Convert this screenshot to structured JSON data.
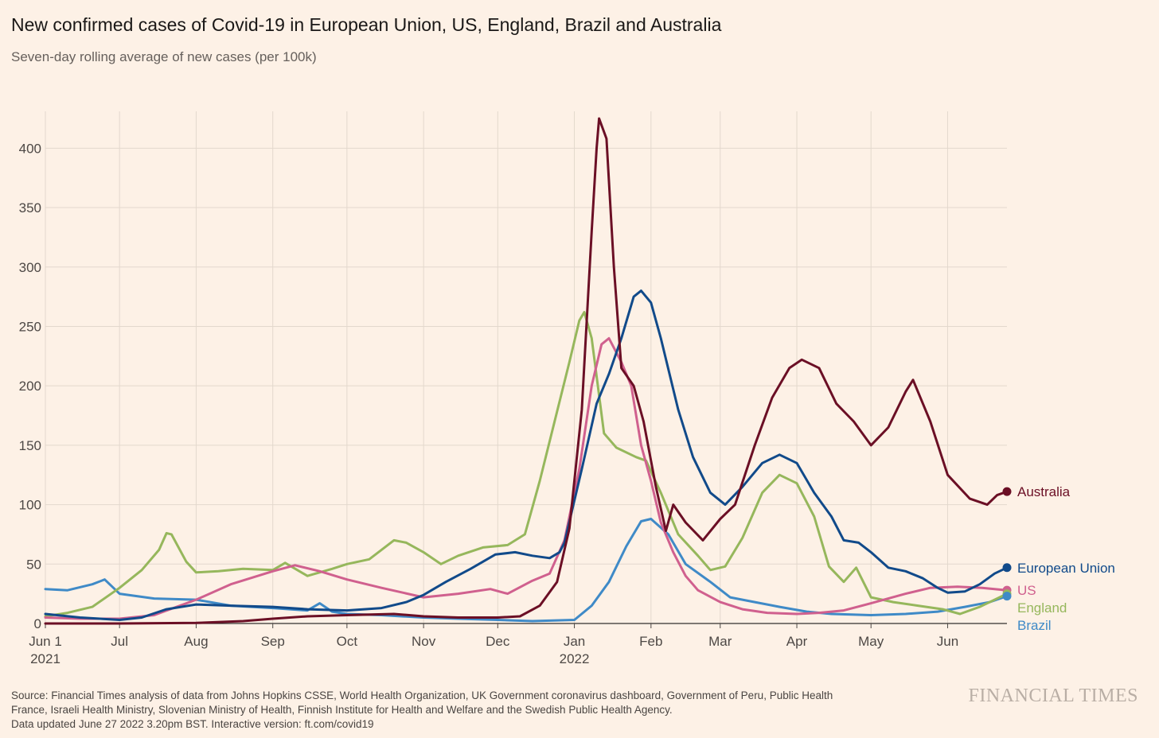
{
  "title": "New confirmed cases of Covid-19 in European Union, US, England, Brazil and Australia",
  "subtitle": "Seven-day rolling average of new cases (per 100k)",
  "footer": {
    "source_line1": "Source: Financial Times analysis of data from Johns Hopkins CSSE, World Health Organization, UK Government coronavirus dashboard, Government of Peru, Public Health",
    "source_line2": "France, Israeli Health Ministry, Slovenian Ministry of Health, Finnish Institute for Health and Welfare and the Swedish Public Health Agency.",
    "updated": "Data updated June 27 2022 3.20pm BST. Interactive version: ft.com/covid19"
  },
  "brand": "FINANCIAL TIMES",
  "chart_data": {
    "type": "line",
    "xlabel": "",
    "ylabel": "",
    "ylim": [
      0,
      425
    ],
    "yticks": [
      0,
      50,
      100,
      150,
      200,
      250,
      300,
      350,
      400
    ],
    "xlim": [
      "2021-06-01",
      "2022-06-25"
    ],
    "xticks": [
      {
        "date": "2021-06-01",
        "label": "Jun 1",
        "sublabel": "2021"
      },
      {
        "date": "2021-07-01",
        "label": "Jul",
        "sublabel": ""
      },
      {
        "date": "2021-08-01",
        "label": "Aug",
        "sublabel": ""
      },
      {
        "date": "2021-09-01",
        "label": "Sep",
        "sublabel": ""
      },
      {
        "date": "2021-10-01",
        "label": "Oct",
        "sublabel": ""
      },
      {
        "date": "2021-11-01",
        "label": "Nov",
        "sublabel": ""
      },
      {
        "date": "2021-12-01",
        "label": "Dec",
        "sublabel": ""
      },
      {
        "date": "2022-01-01",
        "label": "Jan",
        "sublabel": "2022"
      },
      {
        "date": "2022-02-01",
        "label": "Feb",
        "sublabel": ""
      },
      {
        "date": "2022-03-01",
        "label": "Mar",
        "sublabel": ""
      },
      {
        "date": "2022-04-01",
        "label": "Apr",
        "sublabel": ""
      },
      {
        "date": "2022-05-01",
        "label": "May",
        "sublabel": ""
      },
      {
        "date": "2022-06-01",
        "label": "Jun",
        "sublabel": ""
      }
    ],
    "grid": true,
    "legend": "end-of-line labels",
    "series": [
      {
        "name": "European Union",
        "color": "#114a8a",
        "points": [
          [
            "2021-06-01",
            8
          ],
          [
            "2021-06-15",
            5
          ],
          [
            "2021-07-01",
            3
          ],
          [
            "2021-07-10",
            5
          ],
          [
            "2021-07-20",
            12
          ],
          [
            "2021-08-01",
            16
          ],
          [
            "2021-08-15",
            15
          ],
          [
            "2021-09-01",
            14
          ],
          [
            "2021-09-15",
            12
          ],
          [
            "2021-10-01",
            11
          ],
          [
            "2021-10-15",
            13
          ],
          [
            "2021-10-25",
            18
          ],
          [
            "2021-11-01",
            24
          ],
          [
            "2021-11-10",
            35
          ],
          [
            "2021-11-20",
            46
          ],
          [
            "2021-11-30",
            58
          ],
          [
            "2021-12-08",
            60
          ],
          [
            "2021-12-15",
            57
          ],
          [
            "2021-12-22",
            55
          ],
          [
            "2021-12-26",
            60
          ],
          [
            "2021-12-28",
            68
          ],
          [
            "2022-01-04",
            130
          ],
          [
            "2022-01-10",
            185
          ],
          [
            "2022-01-15",
            210
          ],
          [
            "2022-01-20",
            240
          ],
          [
            "2022-01-25",
            275
          ],
          [
            "2022-01-28",
            280
          ],
          [
            "2022-02-01",
            270
          ],
          [
            "2022-02-05",
            240
          ],
          [
            "2022-02-12",
            180
          ],
          [
            "2022-02-18",
            140
          ],
          [
            "2022-02-25",
            110
          ],
          [
            "2022-03-03",
            100
          ],
          [
            "2022-03-10",
            115
          ],
          [
            "2022-03-18",
            135
          ],
          [
            "2022-03-25",
            142
          ],
          [
            "2022-04-01",
            135
          ],
          [
            "2022-04-08",
            110
          ],
          [
            "2022-04-15",
            90
          ],
          [
            "2022-04-20",
            70
          ],
          [
            "2022-04-26",
            68
          ],
          [
            "2022-05-01",
            60
          ],
          [
            "2022-05-08",
            47
          ],
          [
            "2022-05-15",
            44
          ],
          [
            "2022-05-22",
            38
          ],
          [
            "2022-05-28",
            30
          ],
          [
            "2022-06-01",
            26
          ],
          [
            "2022-06-08",
            27
          ],
          [
            "2022-06-14",
            33
          ],
          [
            "2022-06-20",
            42
          ],
          [
            "2022-06-25",
            47
          ]
        ]
      },
      {
        "name": "US",
        "color": "#d0608e",
        "points": [
          [
            "2021-06-01",
            5
          ],
          [
            "2021-06-15",
            4
          ],
          [
            "2021-07-01",
            4
          ],
          [
            "2021-07-15",
            7
          ],
          [
            "2021-08-01",
            20
          ],
          [
            "2021-08-15",
            33
          ],
          [
            "2021-09-01",
            44
          ],
          [
            "2021-09-10",
            49
          ],
          [
            "2021-09-20",
            44
          ],
          [
            "2021-10-01",
            37
          ],
          [
            "2021-10-15",
            30
          ],
          [
            "2021-11-01",
            22
          ],
          [
            "2021-11-15",
            25
          ],
          [
            "2021-11-28",
            29
          ],
          [
            "2021-12-05",
            25
          ],
          [
            "2021-12-15",
            36
          ],
          [
            "2021-12-22",
            42
          ],
          [
            "2021-12-28",
            70
          ],
          [
            "2022-01-03",
            130
          ],
          [
            "2022-01-08",
            200
          ],
          [
            "2022-01-12",
            235
          ],
          [
            "2022-01-15",
            240
          ],
          [
            "2022-01-20",
            220
          ],
          [
            "2022-01-24",
            200
          ],
          [
            "2022-01-28",
            150
          ],
          [
            "2022-02-01",
            120
          ],
          [
            "2022-02-05",
            85
          ],
          [
            "2022-02-10",
            60
          ],
          [
            "2022-02-15",
            40
          ],
          [
            "2022-02-20",
            28
          ],
          [
            "2022-03-01",
            18
          ],
          [
            "2022-03-10",
            12
          ],
          [
            "2022-03-20",
            9
          ],
          [
            "2022-04-01",
            8
          ],
          [
            "2022-04-10",
            9
          ],
          [
            "2022-04-20",
            11
          ],
          [
            "2022-05-01",
            17
          ],
          [
            "2022-05-15",
            25
          ],
          [
            "2022-05-25",
            30
          ],
          [
            "2022-06-05",
            31
          ],
          [
            "2022-06-15",
            30
          ],
          [
            "2022-06-25",
            28
          ]
        ]
      },
      {
        "name": "England",
        "color": "#96b75c",
        "points": [
          [
            "2021-06-01",
            6
          ],
          [
            "2021-06-10",
            9
          ],
          [
            "2021-06-20",
            14
          ],
          [
            "2021-07-01",
            30
          ],
          [
            "2021-07-10",
            45
          ],
          [
            "2021-07-17",
            62
          ],
          [
            "2021-07-20",
            76
          ],
          [
            "2021-07-22",
            75
          ],
          [
            "2021-07-28",
            52
          ],
          [
            "2021-08-01",
            43
          ],
          [
            "2021-08-10",
            44
          ],
          [
            "2021-08-20",
            46
          ],
          [
            "2021-09-01",
            45
          ],
          [
            "2021-09-06",
            51
          ],
          [
            "2021-09-15",
            40
          ],
          [
            "2021-09-25",
            46
          ],
          [
            "2021-10-01",
            50
          ],
          [
            "2021-10-10",
            54
          ],
          [
            "2021-10-20",
            70
          ],
          [
            "2021-10-25",
            68
          ],
          [
            "2021-11-01",
            60
          ],
          [
            "2021-11-08",
            50
          ],
          [
            "2021-11-15",
            57
          ],
          [
            "2021-11-25",
            64
          ],
          [
            "2021-12-05",
            66
          ],
          [
            "2021-12-12",
            75
          ],
          [
            "2021-12-18",
            120
          ],
          [
            "2021-12-24",
            170
          ],
          [
            "2021-12-30",
            220
          ],
          [
            "2022-01-03",
            255
          ],
          [
            "2022-01-05",
            262
          ],
          [
            "2022-01-08",
            240
          ],
          [
            "2022-01-13",
            160
          ],
          [
            "2022-01-18",
            148
          ],
          [
            "2022-01-26",
            140
          ],
          [
            "2022-01-30",
            137
          ],
          [
            "2022-02-05",
            110
          ],
          [
            "2022-02-12",
            75
          ],
          [
            "2022-02-20",
            57
          ],
          [
            "2022-02-25",
            45
          ],
          [
            "2022-03-03",
            48
          ],
          [
            "2022-03-10",
            72
          ],
          [
            "2022-03-18",
            110
          ],
          [
            "2022-03-25",
            125
          ],
          [
            "2022-04-01",
            118
          ],
          [
            "2022-04-08",
            90
          ],
          [
            "2022-04-14",
            48
          ],
          [
            "2022-04-20",
            35
          ],
          [
            "2022-04-25",
            47
          ],
          [
            "2022-05-01",
            22
          ],
          [
            "2022-05-10",
            18
          ],
          [
            "2022-05-20",
            15
          ],
          [
            "2022-05-30",
            12
          ],
          [
            "2022-06-06",
            8
          ],
          [
            "2022-06-14",
            14
          ],
          [
            "2022-06-20",
            20
          ],
          [
            "2022-06-25",
            25
          ]
        ]
      },
      {
        "name": "Brazil",
        "color": "#3f8ac7",
        "points": [
          [
            "2021-06-01",
            29
          ],
          [
            "2021-06-10",
            28
          ],
          [
            "2021-06-20",
            33
          ],
          [
            "2021-06-25",
            37
          ],
          [
            "2021-07-01",
            25
          ],
          [
            "2021-07-15",
            21
          ],
          [
            "2021-08-01",
            20
          ],
          [
            "2021-08-15",
            15
          ],
          [
            "2021-09-01",
            13
          ],
          [
            "2021-09-15",
            11
          ],
          [
            "2021-09-20",
            17
          ],
          [
            "2021-09-25",
            10
          ],
          [
            "2021-10-01",
            8
          ],
          [
            "2021-10-15",
            7
          ],
          [
            "2021-11-01",
            5
          ],
          [
            "2021-11-15",
            4
          ],
          [
            "2021-12-01",
            3
          ],
          [
            "2021-12-15",
            2
          ],
          [
            "2022-01-01",
            3
          ],
          [
            "2022-01-08",
            15
          ],
          [
            "2022-01-15",
            35
          ],
          [
            "2022-01-22",
            65
          ],
          [
            "2022-01-28",
            86
          ],
          [
            "2022-02-01",
            88
          ],
          [
            "2022-02-08",
            75
          ],
          [
            "2022-02-15",
            50
          ],
          [
            "2022-02-25",
            35
          ],
          [
            "2022-03-05",
            22
          ],
          [
            "2022-03-15",
            18
          ],
          [
            "2022-03-25",
            14
          ],
          [
            "2022-04-05",
            10
          ],
          [
            "2022-04-15",
            8
          ],
          [
            "2022-05-01",
            7
          ],
          [
            "2022-05-15",
            8
          ],
          [
            "2022-05-28",
            10
          ],
          [
            "2022-06-08",
            14
          ],
          [
            "2022-06-18",
            18
          ],
          [
            "2022-06-25",
            23
          ]
        ]
      },
      {
        "name": "Australia",
        "color": "#6b0f25",
        "points": [
          [
            "2021-06-01",
            0
          ],
          [
            "2021-07-01",
            0
          ],
          [
            "2021-08-01",
            0.5
          ],
          [
            "2021-08-20",
            2
          ],
          [
            "2021-09-01",
            4
          ],
          [
            "2021-09-15",
            6
          ],
          [
            "2021-10-01",
            7
          ],
          [
            "2021-10-20",
            8
          ],
          [
            "2021-11-01",
            6
          ],
          [
            "2021-11-15",
            5
          ],
          [
            "2021-12-01",
            5
          ],
          [
            "2021-12-10",
            6
          ],
          [
            "2021-12-18",
            15
          ],
          [
            "2021-12-25",
            35
          ],
          [
            "2021-12-30",
            80
          ],
          [
            "2022-01-04",
            180
          ],
          [
            "2022-01-08",
            330
          ],
          [
            "2022-01-10",
            400
          ],
          [
            "2022-01-11",
            425
          ],
          [
            "2022-01-14",
            408
          ],
          [
            "2022-01-17",
            300
          ],
          [
            "2022-01-20",
            215
          ],
          [
            "2022-01-25",
            200
          ],
          [
            "2022-01-29",
            170
          ],
          [
            "2022-02-03",
            115
          ],
          [
            "2022-02-07",
            78
          ],
          [
            "2022-02-10",
            100
          ],
          [
            "2022-02-15",
            85
          ],
          [
            "2022-02-22",
            70
          ],
          [
            "2022-03-01",
            88
          ],
          [
            "2022-03-07",
            100
          ],
          [
            "2022-03-15",
            150
          ],
          [
            "2022-03-22",
            190
          ],
          [
            "2022-03-29",
            215
          ],
          [
            "2022-04-03",
            222
          ],
          [
            "2022-04-10",
            215
          ],
          [
            "2022-04-17",
            185
          ],
          [
            "2022-04-24",
            170
          ],
          [
            "2022-05-01",
            150
          ],
          [
            "2022-05-08",
            165
          ],
          [
            "2022-05-15",
            195
          ],
          [
            "2022-05-18",
            205
          ],
          [
            "2022-05-25",
            170
          ],
          [
            "2022-06-01",
            125
          ],
          [
            "2022-06-10",
            105
          ],
          [
            "2022-06-17",
            100
          ],
          [
            "2022-06-21",
            108
          ],
          [
            "2022-06-25",
            111
          ]
        ]
      }
    ]
  }
}
